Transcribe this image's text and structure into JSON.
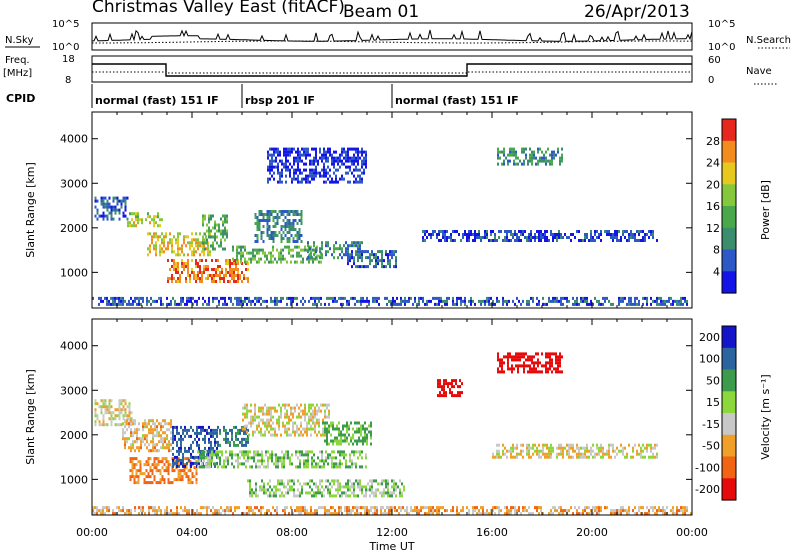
{
  "header": {
    "title": "Christmas Valley East (fitACF)",
    "beam": "Beam 01",
    "date": "26/Apr/2013"
  },
  "nsky_panel": {
    "left_label": "N.Sky",
    "right_label": "N.Search",
    "left_ticks": [
      "10^5",
      "10^0"
    ],
    "right_ticks": [
      "10^5",
      "10^0"
    ]
  },
  "freq_panel": {
    "left_label_1": "Freq.",
    "left_label_2": "[MHz]",
    "right_label": "Nave",
    "left_ticks": [
      "18",
      "8"
    ],
    "right_ticks": [
      "60",
      "0"
    ]
  },
  "cpid": {
    "label": "CPID",
    "segments": [
      {
        "start_hour": 0,
        "end_hour": 6,
        "text": "normal (fast) 151 IF"
      },
      {
        "start_hour": 6,
        "end_hour": 12,
        "text": "rbsp 201 IF"
      },
      {
        "start_hour": 12,
        "end_hour": 24,
        "text": "normal (fast) 151 IF"
      }
    ]
  },
  "chart_data": [
    {
      "type": "heatmap",
      "panel": "power",
      "ylabel": "Slant Range [km]",
      "ylim": [
        200,
        4600
      ],
      "yticks": [
        "1000",
        "2000",
        "3000",
        "4000"
      ],
      "xlim": [
        0,
        24
      ],
      "colorbar": {
        "label": "Power [dB]",
        "range": [
          0,
          32
        ],
        "ticks": [
          "4",
          "8",
          "12",
          "16",
          "20",
          "24",
          "28"
        ],
        "colors": [
          "#1414e6",
          "#2c58c8",
          "#3c8c6e",
          "#4aa84c",
          "#86c83c",
          "#e6c81e",
          "#f28c1e",
          "#e6281e"
        ]
      },
      "regions": [
        {
          "t0": 0.1,
          "t1": 1.4,
          "r0": 2200,
          "r1": 2700,
          "value": 6
        },
        {
          "t0": 1.4,
          "t1": 2.8,
          "r0": 2050,
          "r1": 2350,
          "value": 20
        },
        {
          "t0": 2.2,
          "t1": 4.8,
          "r0": 1400,
          "r1": 1900,
          "value": 22
        },
        {
          "t0": 3.0,
          "t1": 6.2,
          "r0": 800,
          "r1": 1300,
          "value": 27
        },
        {
          "t0": 4.4,
          "t1": 5.4,
          "r0": 1500,
          "r1": 2300,
          "value": 14
        },
        {
          "t0": 5.6,
          "t1": 9.2,
          "r0": 1200,
          "r1": 1600,
          "value": 15
        },
        {
          "t0": 6.5,
          "t1": 8.4,
          "r0": 1700,
          "r1": 2400,
          "value": 10
        },
        {
          "t0": 8.6,
          "t1": 10.8,
          "r0": 1300,
          "r1": 1700,
          "value": 9
        },
        {
          "t0": 10.2,
          "t1": 12.2,
          "r0": 1150,
          "r1": 1500,
          "value": 7
        },
        {
          "t0": 7.0,
          "t1": 11.0,
          "r0": 3000,
          "r1": 3800,
          "value": 3
        },
        {
          "t0": 13.2,
          "t1": 22.6,
          "r0": 1700,
          "r1": 1950,
          "value": 4
        },
        {
          "t0": 16.2,
          "t1": 18.8,
          "r0": 3400,
          "r1": 3800,
          "value": 11
        },
        {
          "t0": 0.0,
          "t1": 24.0,
          "r0": 250,
          "r1": 450,
          "value": 6
        }
      ]
    },
    {
      "type": "heatmap",
      "panel": "velocity",
      "ylabel": "Slant Range [km]",
      "ylim": [
        200,
        4600
      ],
      "yticks": [
        "1000",
        "2000",
        "3000",
        "4000"
      ],
      "xlim": [
        0,
        24
      ],
      "xticks": [
        "00:00",
        "04:00",
        "08:00",
        "12:00",
        "16:00",
        "20:00",
        "00:00"
      ],
      "xlabel": "Time UT",
      "colorbar": {
        "label": "Velocity [m s⁻¹]",
        "levels": [
          "200",
          "100",
          "50",
          "15",
          "-15",
          "-50",
          "-100",
          "-200"
        ],
        "colors": [
          "#1414c8",
          "#2c64a0",
          "#3c9c4c",
          "#8cd83c",
          "#c8c8c8",
          "#f0a028",
          "#f06414",
          "#e60a0a"
        ]
      },
      "regions": [
        {
          "t0": 0.1,
          "t1": 1.6,
          "r0": 2200,
          "r1": 2800,
          "value": 0
        },
        {
          "t0": 1.2,
          "t1": 3.2,
          "r0": 1650,
          "r1": 2350,
          "value": -20
        },
        {
          "t0": 1.5,
          "t1": 4.2,
          "r0": 900,
          "r1": 1500,
          "value": -60
        },
        {
          "t0": 3.2,
          "t1": 5.0,
          "r0": 1300,
          "r1": 2200,
          "value": 180
        },
        {
          "t0": 5.0,
          "t1": 6.2,
          "r0": 1750,
          "r1": 2200,
          "value": 120
        },
        {
          "t0": 4.2,
          "t1": 11.0,
          "r0": 1300,
          "r1": 1650,
          "value": 40
        },
        {
          "t0": 6.0,
          "t1": 9.5,
          "r0": 2000,
          "r1": 2700,
          "value": 0
        },
        {
          "t0": 6.2,
          "t1": 12.5,
          "r0": 600,
          "r1": 1000,
          "value": 30
        },
        {
          "t0": 9.2,
          "t1": 11.2,
          "r0": 1800,
          "r1": 2300,
          "value": 60
        },
        {
          "t0": 13.8,
          "t1": 14.8,
          "r0": 2850,
          "r1": 3250,
          "value": -210
        },
        {
          "t0": 16.2,
          "t1": 18.8,
          "r0": 3400,
          "r1": 3850,
          "value": -220
        },
        {
          "t0": 16.0,
          "t1": 22.6,
          "r0": 1500,
          "r1": 1800,
          "value": 0
        },
        {
          "t0": 0.0,
          "t1": 24.0,
          "r0": 250,
          "r1": 400,
          "value": -30
        }
      ]
    }
  ]
}
